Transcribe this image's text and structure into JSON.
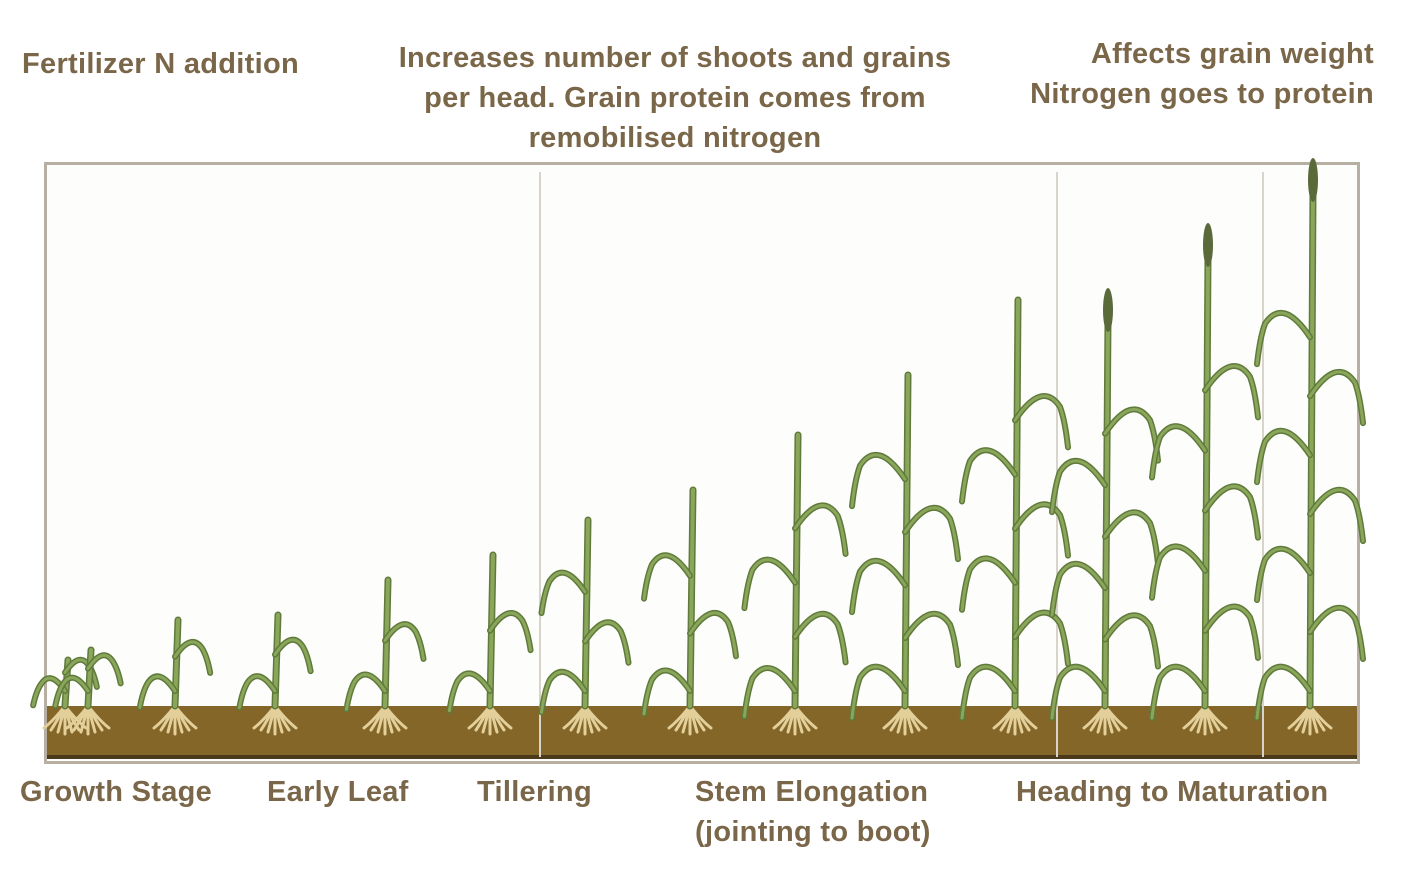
{
  "top_annotations": {
    "fertilizer": "Fertilizer N addition",
    "shoots_line1": "Increases number of shoots and grains",
    "shoots_line2": "per head. Grain protein comes from",
    "shoots_line3": "remobilised nitrogen",
    "grain_line1": "Affects grain weight",
    "grain_line2": "Nitrogen goes to protein"
  },
  "stage_labels": {
    "growth_stage": "Growth Stage",
    "early_leaf": "Early Leaf",
    "tillering": "Tillering",
    "stem_line1": "Stem Elongation",
    "stem_line2": "(jointing to boot)",
    "heading": "Heading to Maturation"
  },
  "colors": {
    "text": "#7a6648",
    "soil": "#846628",
    "plant": "#8aa65a",
    "roots": "#e2cf9a",
    "frame": "#b8afa3"
  }
}
